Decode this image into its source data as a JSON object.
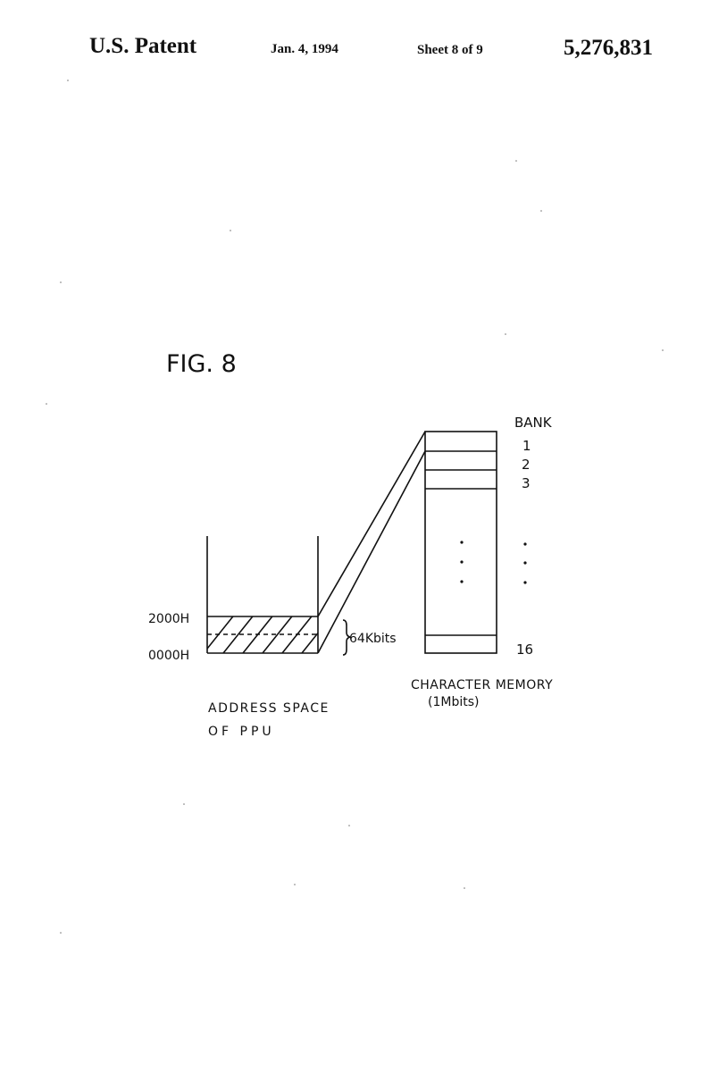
{
  "header": {
    "label": "U.S. Patent",
    "date": "Jan. 4, 1994",
    "sheet": "Sheet 8 of 9",
    "patent_number": "5,276,831"
  },
  "figure": {
    "title": "FIG. 8",
    "address_space": {
      "upper_address": "2000H",
      "lower_address": "0000H",
      "window_size": "64Kbits",
      "caption_line1": "ADDRESS SPACE",
      "caption_line2": "OF PPU"
    },
    "memory": {
      "bank_header": "BANK",
      "banks": [
        "1",
        "2",
        "3",
        "16"
      ],
      "caption_line1": "CHARACTER MEMORY",
      "caption_line2": "(1Mbits)"
    }
  }
}
